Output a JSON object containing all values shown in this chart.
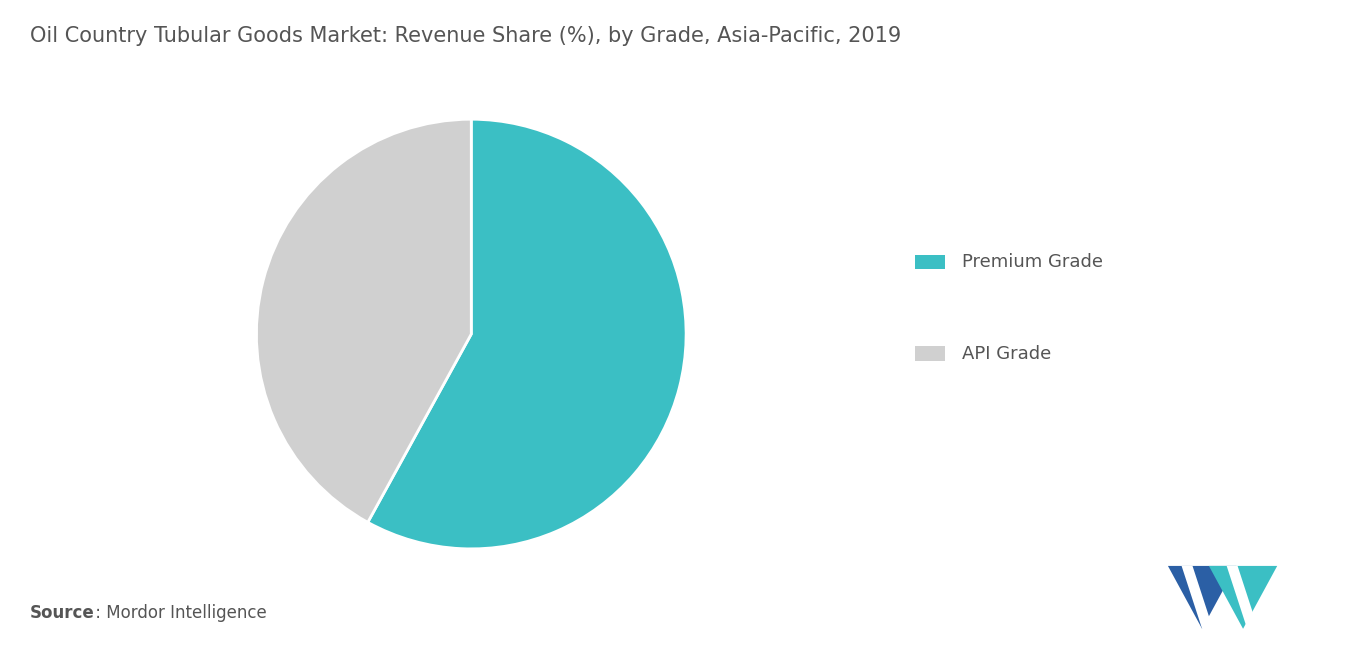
{
  "title": "Oil Country Tubular Goods Market: Revenue Share (%), by Grade, Asia-Pacific, 2019",
  "slices": [
    {
      "label": "Premium Grade",
      "value": 58,
      "color": "#3bbfc4"
    },
    {
      "label": "API Grade",
      "value": 42,
      "color": "#d0d0d0"
    }
  ],
  "source_bold": "Source",
  "source_normal": " : Mordor Intelligence",
  "background_color": "#ffffff",
  "title_color": "#555555",
  "title_fontsize": 15,
  "legend_fontsize": 13,
  "source_fontsize": 12,
  "start_angle": 90,
  "logo_dark": "#2b5fa5",
  "logo_teal": "#3bbfc4"
}
